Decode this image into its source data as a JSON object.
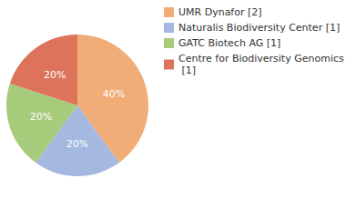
{
  "chart_data": {
    "type": "pie",
    "categories": [
      "UMR Dynafor [2]",
      "Naturalis Biodiversity Center [1]",
      "GATC Biotech AG [1]",
      "Centre for Biodiversity Genomics [1]"
    ],
    "values": [
      40,
      20,
      20,
      20
    ],
    "value_labels": [
      "40%",
      "20%",
      "20%",
      "20%"
    ],
    "colors": [
      "#f0ad78",
      "#a4b8e0",
      "#a6cb7a",
      "#dc735a"
    ],
    "data_labels": true,
    "legend": "top-right"
  }
}
